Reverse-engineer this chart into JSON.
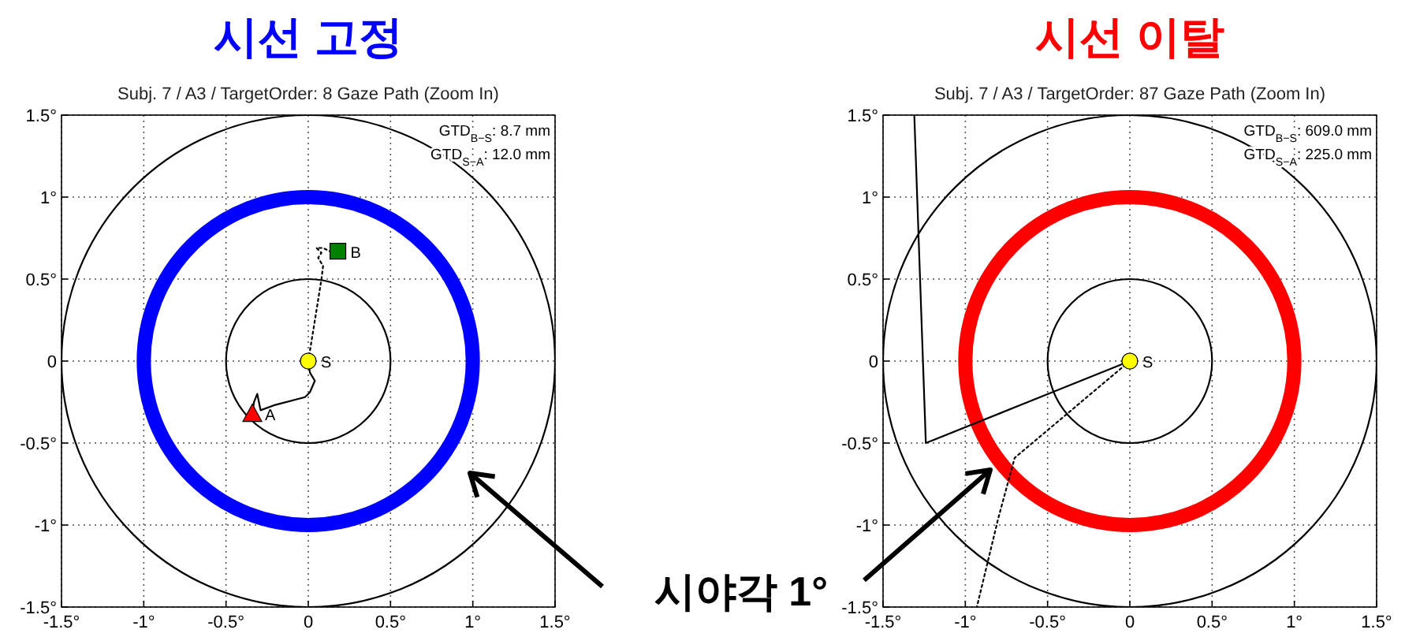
{
  "chart_data": [
    {
      "type": "line",
      "title": "시선 고정",
      "subtitle": "Subj. 7 / A3 / TargetOrder: 8 Gaze Path (Zoom In)",
      "xlim": [
        -1.5,
        1.5
      ],
      "ylim": [
        -1.5,
        1.5
      ],
      "xticks": [
        {
          "value": -1.5,
          "label": "-1.5°"
        },
        {
          "value": -1,
          "label": "-1°"
        },
        {
          "value": -0.5,
          "label": "-0.5°"
        },
        0,
        {
          "value": 0.5,
          "label": "0.5°"
        },
        {
          "value": 1,
          "label": "1°"
        },
        {
          "value": 1.5,
          "label": "1.5°"
        }
      ],
      "yticks": [
        {
          "value": -1.5,
          "label": "-1.5°"
        },
        {
          "value": -1,
          "label": "-1°"
        },
        {
          "value": -0.5,
          "label": "-0.5°"
        },
        0,
        {
          "value": 0.5,
          "label": "0.5°"
        },
        {
          "value": 1,
          "label": "1°"
        },
        {
          "value": 1.5,
          "label": "1.5°"
        }
      ],
      "grid": true,
      "legend": false,
      "annotations": [
        "GTD$_{B−S}$: 8.7 mm",
        "GTD$_{S−A}$: 12.0 mm",
        "시야각 1°"
      ],
      "series": [
        {
          "type": "line",
          "color": "#000000",
          "line_style": "dotted",
          "x": [
            0,
            0.05,
            0.08,
            0.09,
            0.06,
            0.08,
            0.05,
            0.09,
            0.13
          ],
          "values": [
            0,
            0.31,
            0.5,
            0.58,
            0.63,
            0.66,
            0.69,
            0.69,
            0.67
          ]
        },
        {
          "type": "line",
          "color": "#000000",
          "line_style": "solid",
          "x": [
            0,
            0.01,
            0.04,
            0.01,
            -0.02,
            -0.21,
            -0.29,
            -0.31,
            -0.33,
            -0.34
          ],
          "values": [
            0,
            -0.07,
            -0.12,
            -0.19,
            -0.22,
            -0.27,
            -0.3,
            -0.2,
            -0.25,
            -0.32
          ]
        },
        {
          "type": "scatter",
          "name": "S",
          "color": "#ffff00",
          "marker": "circle",
          "x": [
            0
          ],
          "values": [
            0
          ]
        },
        {
          "type": "scatter",
          "name": "A",
          "color": "#ff0000",
          "marker": "triangle",
          "x": [
            -0.34
          ],
          "values": [
            -0.32
          ]
        },
        {
          "type": "scatter",
          "name": "B",
          "color": "#008000",
          "marker": "square",
          "x": [
            0.18
          ],
          "values": [
            0.67
          ]
        }
      ]
    },
    {
      "type": "line",
      "title": "시선 이탈",
      "subtitle": "Subj. 7 / A3 / TargetOrder: 87 Gaze Path (Zoom In)",
      "xlim": [
        -1.5,
        1.5
      ],
      "ylim": [
        -1.5,
        1.5
      ],
      "xticks": [
        {
          "value": -1.5,
          "label": "-1.5°"
        },
        {
          "value": -1,
          "label": "-1°"
        },
        {
          "value": -0.5,
          "label": "-0.5°"
        },
        0,
        {
          "value": 0.5,
          "label": "0.5°"
        },
        {
          "value": 1,
          "label": "1°"
        },
        {
          "value": 1.5,
          "label": "1.5°"
        }
      ],
      "yticks": [
        {
          "value": -1.5,
          "label": "-1.5°"
        },
        {
          "value": -1,
          "label": "-1°"
        },
        {
          "value": -0.5,
          "label": "-0.5°"
        },
        0,
        {
          "value": 0.5,
          "label": "0.5°"
        },
        {
          "value": 1,
          "label": "1°"
        },
        {
          "value": 1.5,
          "label": "1.5°"
        }
      ],
      "grid": true,
      "legend": false,
      "annotations": [
        "GTD$_{B−S}$: 609.0 mm",
        "GTD$_{S−A}$: 225.0 mm"
      ],
      "series": [
        {
          "type": "line",
          "color": "#000000",
          "line_style": "solid",
          "x": [
            -1.31,
            -1.24,
            0
          ],
          "values": [
            1.5,
            -0.5,
            0
          ]
        },
        {
          "type": "line",
          "color": "#000000",
          "line_style": "dotted",
          "x": [
            0,
            -0.7,
            -0.8,
            -0.93
          ],
          "values": [
            0,
            -0.59,
            -0.96,
            -1.5
          ]
        },
        {
          "type": "scatter",
          "name": "S",
          "color": "#ffff00",
          "marker": "circle",
          "x": [
            0
          ],
          "values": [
            0
          ]
        }
      ]
    }
  ]
}
